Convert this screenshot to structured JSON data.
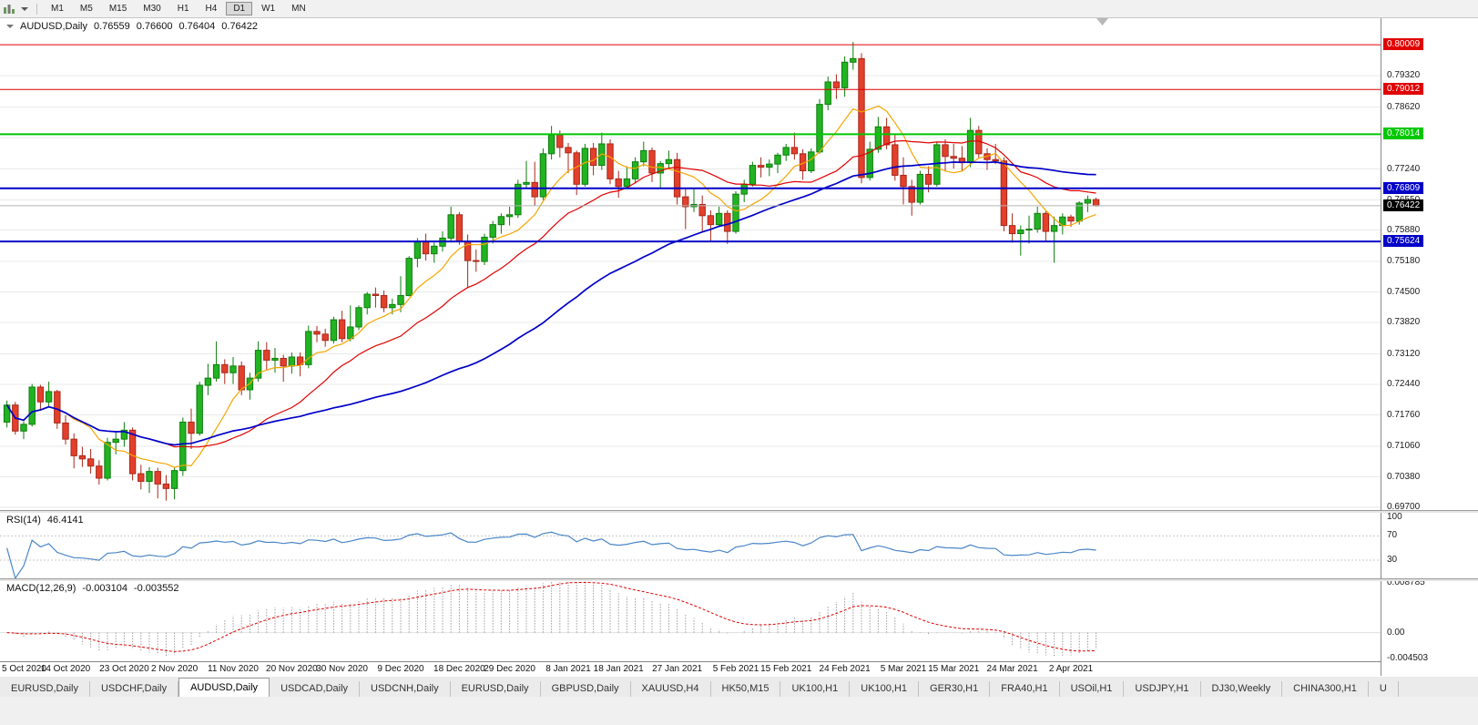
{
  "toolbar": {
    "timeframes": [
      {
        "label": "M1"
      },
      {
        "label": "M5"
      },
      {
        "label": "M15"
      },
      {
        "label": "M30"
      },
      {
        "label": "H1"
      },
      {
        "label": "H4"
      },
      {
        "label": "D1",
        "active": true
      },
      {
        "label": "W1"
      },
      {
        "label": "MN"
      }
    ]
  },
  "main_title": {
    "symbol": "AUDUSD,Daily",
    "open": "0.76559",
    "high": "0.76600",
    "low": "0.76404",
    "close": "0.76422"
  },
  "rsi_title": {
    "name": "RSI(14)",
    "value": "46.4141"
  },
  "macd_title": {
    "name": "MACD(12,26,9)",
    "main": "-0.003104",
    "signal": "-0.003552"
  },
  "tabs": {
    "items": [
      {
        "label": "EURUSD,Daily"
      },
      {
        "label": "USDCHF,Daily"
      },
      {
        "label": "AUDUSD,Daily",
        "active": true
      },
      {
        "label": "USDCAD,Daily"
      },
      {
        "label": "USDCNH,Daily"
      },
      {
        "label": "EURUSD,Daily"
      },
      {
        "label": "GBPUSD,Daily"
      },
      {
        "label": "XAUUSD,H4"
      },
      {
        "label": "HK50,M15"
      },
      {
        "label": "UK100,H1"
      },
      {
        "label": "UK100,H1"
      },
      {
        "label": "GER30,H1"
      },
      {
        "label": "FRA40,H1"
      },
      {
        "label": "USOil,H1"
      },
      {
        "label": "USDJPY,H1"
      },
      {
        "label": "DJ30,Weekly"
      },
      {
        "label": "CHINA300,H1"
      },
      {
        "label": "U"
      }
    ]
  },
  "chart_data": {
    "type": "candlestick",
    "symbol": "AUDUSD",
    "timeframe": "Daily",
    "price_range": {
      "min": 0.6964,
      "max": 0.806
    },
    "y_axis_labels": [
      "0.79320",
      "0.78620",
      "0.77940",
      "0.77240",
      "0.76550",
      "0.75880",
      "0.75180",
      "0.74500",
      "0.73820",
      "0.73120",
      "0.72440",
      "0.71760",
      "0.71060",
      "0.70380",
      "0.69700"
    ],
    "x_axis_labels": [
      {
        "i": 0,
        "label": "5 Oct 2020"
      },
      {
        "i": 7,
        "label": "14 Oct 2020"
      },
      {
        "i": 14,
        "label": "23 Oct 2020"
      },
      {
        "i": 20,
        "label": "2 Nov 2020"
      },
      {
        "i": 27,
        "label": "11 Nov 2020"
      },
      {
        "i": 34,
        "label": "20 Nov 2020"
      },
      {
        "i": 40,
        "label": "30 Nov 2020"
      },
      {
        "i": 47,
        "label": "9 Dec 2020"
      },
      {
        "i": 54,
        "label": "18 Dec 2020"
      },
      {
        "i": 60,
        "label": "29 Dec 2020"
      },
      {
        "i": 67,
        "label": "8 Jan 2021"
      },
      {
        "i": 73,
        "label": "18 Jan 2021"
      },
      {
        "i": 80,
        "label": "27 Jan 2021"
      },
      {
        "i": 87,
        "label": "5 Feb 2021"
      },
      {
        "i": 93,
        "label": "15 Feb 2021"
      },
      {
        "i": 100,
        "label": "24 Feb 2021"
      },
      {
        "i": 107,
        "label": "5 Mar 2021"
      },
      {
        "i": 113,
        "label": "15 Mar 2021"
      },
      {
        "i": 120,
        "label": "24 Mar 2021"
      },
      {
        "i": 127,
        "label": "2 Apr 2021"
      }
    ],
    "horizontal_lines": [
      {
        "price": 0.80009,
        "label": "0.80009",
        "color": "#e00000",
        "width": 1
      },
      {
        "price": 0.79012,
        "label": "0.79012",
        "color": "#e00000",
        "width": 1
      },
      {
        "price": 0.78014,
        "label": "0.78014",
        "color": "#00c800",
        "width": 2
      },
      {
        "price": 0.76809,
        "label": "0.76809",
        "color": "#0000c8",
        "width": 2
      },
      {
        "price": 0.75624,
        "label": "0.75624",
        "color": "#0000c8",
        "width": 2
      }
    ],
    "current_price": {
      "price": 0.76422,
      "label": "0.76422",
      "line_color": "#b4b4b4",
      "box_color": "#000000"
    },
    "colors": {
      "up": "#22b322",
      "up_border": "#0e7d0e",
      "down": "#e2402c",
      "down_border": "#a8281a",
      "grid": "#e9e9e9",
      "ma_fast": "#f5a500",
      "ma_mid": "#e00000",
      "ma_slow": "#0000c8",
      "rsi": "#4a86c8",
      "rsi_level": "#c8c8c8",
      "macd_hist": "#9a9a9a",
      "macd_signal": "#e00000",
      "shift_marker": "#b8b8b8"
    },
    "moving_averages": [
      {
        "period": 8,
        "color_key": "ma_fast",
        "width": 1.2
      },
      {
        "period": 20,
        "color_key": "ma_mid",
        "width": 1.2
      },
      {
        "period": 50,
        "color_key": "ma_slow",
        "width": 1.7
      }
    ],
    "rsi": {
      "period": 14,
      "levels": [
        70,
        30
      ],
      "scale_labels": [
        "100",
        "70",
        "30"
      ],
      "scale_max": 108
    },
    "macd": {
      "fast": 12,
      "slow": 26,
      "signal": 9,
      "range": {
        "min": -0.00505,
        "max": 0.00911
      },
      "axis_labels": [
        "0.008785",
        "0.00",
        "-0.004503"
      ]
    },
    "candles": [
      [
        0.716,
        0.7208,
        0.7148,
        0.7198
      ],
      [
        0.7198,
        0.7205,
        0.7132,
        0.714
      ],
      [
        0.714,
        0.7162,
        0.7122,
        0.7155
      ],
      [
        0.7155,
        0.7245,
        0.715,
        0.7238
      ],
      [
        0.7238,
        0.7243,
        0.7185,
        0.7205
      ],
      [
        0.7205,
        0.725,
        0.7195,
        0.7228
      ],
      [
        0.7228,
        0.7232,
        0.7145,
        0.7158
      ],
      [
        0.7158,
        0.7175,
        0.711,
        0.7122
      ],
      [
        0.7122,
        0.7135,
        0.7057,
        0.7085
      ],
      [
        0.7085,
        0.7105,
        0.706,
        0.7078
      ],
      [
        0.7078,
        0.71,
        0.7045,
        0.7062
      ],
      [
        0.7062,
        0.7075,
        0.7021,
        0.7035
      ],
      [
        0.7035,
        0.7125,
        0.703,
        0.7115
      ],
      [
        0.7115,
        0.714,
        0.7088,
        0.7122
      ],
      [
        0.7122,
        0.716,
        0.7105,
        0.7142
      ],
      [
        0.7142,
        0.7148,
        0.703,
        0.7045
      ],
      [
        0.7045,
        0.7065,
        0.701,
        0.7028
      ],
      [
        0.7028,
        0.706,
        0.7002,
        0.705
      ],
      [
        0.705,
        0.7058,
        0.699,
        0.7022
      ],
      [
        0.7022,
        0.7042,
        0.6985,
        0.7012
      ],
      [
        0.7012,
        0.706,
        0.6988,
        0.7052
      ],
      [
        0.7052,
        0.717,
        0.704,
        0.716
      ],
      [
        0.716,
        0.719,
        0.71,
        0.7135
      ],
      [
        0.7135,
        0.725,
        0.713,
        0.7242
      ],
      [
        0.7242,
        0.729,
        0.722,
        0.7258
      ],
      [
        0.7258,
        0.734,
        0.725,
        0.7288
      ],
      [
        0.7288,
        0.73,
        0.7245,
        0.727
      ],
      [
        0.727,
        0.7305,
        0.7245,
        0.7285
      ],
      [
        0.7285,
        0.7295,
        0.722,
        0.7232
      ],
      [
        0.7232,
        0.727,
        0.721,
        0.7258
      ],
      [
        0.7258,
        0.734,
        0.725,
        0.732
      ],
      [
        0.732,
        0.7338,
        0.7275,
        0.7298
      ],
      [
        0.7298,
        0.7325,
        0.727,
        0.7302
      ],
      [
        0.7302,
        0.731,
        0.725,
        0.7285
      ],
      [
        0.7285,
        0.7315,
        0.7268,
        0.7305
      ],
      [
        0.7305,
        0.7315,
        0.7262,
        0.7288
      ],
      [
        0.7288,
        0.7375,
        0.728,
        0.7362
      ],
      [
        0.7362,
        0.7374,
        0.7338,
        0.7356
      ],
      [
        0.7356,
        0.7368,
        0.7328,
        0.7342
      ],
      [
        0.7342,
        0.7395,
        0.7335,
        0.7388
      ],
      [
        0.7388,
        0.7408,
        0.7338,
        0.7346
      ],
      [
        0.7346,
        0.742,
        0.734,
        0.7372
      ],
      [
        0.7372,
        0.742,
        0.7365,
        0.7415
      ],
      [
        0.7415,
        0.745,
        0.74,
        0.7445
      ],
      [
        0.7445,
        0.746,
        0.7415,
        0.7442
      ],
      [
        0.7442,
        0.7453,
        0.7405,
        0.7415
      ],
      [
        0.7415,
        0.7435,
        0.74,
        0.7422
      ],
      [
        0.7422,
        0.7485,
        0.7405,
        0.7442
      ],
      [
        0.7442,
        0.753,
        0.744,
        0.7525
      ],
      [
        0.7525,
        0.757,
        0.7505,
        0.7562
      ],
      [
        0.7562,
        0.758,
        0.752,
        0.7535
      ],
      [
        0.7535,
        0.756,
        0.7515,
        0.7552
      ],
      [
        0.7552,
        0.7585,
        0.754,
        0.757
      ],
      [
        0.757,
        0.764,
        0.756,
        0.7622
      ],
      [
        0.7622,
        0.7628,
        0.7555,
        0.7562
      ],
      [
        0.7562,
        0.7578,
        0.746,
        0.752
      ],
      [
        0.752,
        0.7545,
        0.7495,
        0.7518
      ],
      [
        0.7518,
        0.758,
        0.751,
        0.7572
      ],
      [
        0.7572,
        0.7608,
        0.7558,
        0.76
      ],
      [
        0.76,
        0.7625,
        0.758,
        0.7618
      ],
      [
        0.7618,
        0.764,
        0.7598,
        0.7622
      ],
      [
        0.7622,
        0.77,
        0.7615,
        0.769
      ],
      [
        0.769,
        0.7742,
        0.768,
        0.7694
      ],
      [
        0.7694,
        0.774,
        0.7642,
        0.7662
      ],
      [
        0.7662,
        0.777,
        0.7655,
        0.7758
      ],
      [
        0.7758,
        0.782,
        0.7745,
        0.78
      ],
      [
        0.78,
        0.781,
        0.775,
        0.7772
      ],
      [
        0.7772,
        0.7782,
        0.7715,
        0.776
      ],
      [
        0.776,
        0.7765,
        0.7666,
        0.769
      ],
      [
        0.769,
        0.778,
        0.7685,
        0.777
      ],
      [
        0.777,
        0.7782,
        0.771,
        0.7732
      ],
      [
        0.7732,
        0.7805,
        0.7722,
        0.778
      ],
      [
        0.778,
        0.779,
        0.769,
        0.7702
      ],
      [
        0.7702,
        0.772,
        0.766,
        0.7685
      ],
      [
        0.7685,
        0.773,
        0.768,
        0.7702
      ],
      [
        0.7702,
        0.775,
        0.7692,
        0.774
      ],
      [
        0.774,
        0.7785,
        0.773,
        0.7765
      ],
      [
        0.7765,
        0.7772,
        0.7695,
        0.7715
      ],
      [
        0.7715,
        0.7742,
        0.768,
        0.7736
      ],
      [
        0.7736,
        0.7765,
        0.7725,
        0.7745
      ],
      [
        0.7745,
        0.776,
        0.7645,
        0.7662
      ],
      [
        0.7662,
        0.768,
        0.759,
        0.764
      ],
      [
        0.764,
        0.768,
        0.7628,
        0.7645
      ],
      [
        0.7645,
        0.7665,
        0.7585,
        0.762
      ],
      [
        0.762,
        0.7632,
        0.7562,
        0.76
      ],
      [
        0.76,
        0.764,
        0.7595,
        0.7625
      ],
      [
        0.7625,
        0.7632,
        0.7557,
        0.7585
      ],
      [
        0.7585,
        0.7675,
        0.758,
        0.7668
      ],
      [
        0.7668,
        0.77,
        0.765,
        0.769
      ],
      [
        0.769,
        0.774,
        0.7685,
        0.7732
      ],
      [
        0.7732,
        0.775,
        0.7705,
        0.7728
      ],
      [
        0.7728,
        0.7745,
        0.7708,
        0.7735
      ],
      [
        0.7735,
        0.776,
        0.7715,
        0.7755
      ],
      [
        0.7755,
        0.778,
        0.7742,
        0.7772
      ],
      [
        0.7772,
        0.7805,
        0.7745,
        0.7758
      ],
      [
        0.7758,
        0.7768,
        0.77,
        0.772
      ],
      [
        0.772,
        0.777,
        0.7715,
        0.7762
      ],
      [
        0.7762,
        0.788,
        0.7758,
        0.7868
      ],
      [
        0.7868,
        0.793,
        0.7855,
        0.7918
      ],
      [
        0.7918,
        0.7935,
        0.788,
        0.7905
      ],
      [
        0.7905,
        0.7975,
        0.7885,
        0.7962
      ],
      [
        0.7962,
        0.8007,
        0.7945,
        0.797
      ],
      [
        0.797,
        0.7982,
        0.7692,
        0.7705
      ],
      [
        0.7705,
        0.7785,
        0.7698,
        0.7768
      ],
      [
        0.7768,
        0.784,
        0.776,
        0.7818
      ],
      [
        0.7818,
        0.7838,
        0.7768,
        0.7778
      ],
      [
        0.7778,
        0.78,
        0.7698,
        0.771
      ],
      [
        0.771,
        0.775,
        0.7645,
        0.7685
      ],
      [
        0.7685,
        0.77,
        0.762,
        0.765
      ],
      [
        0.765,
        0.772,
        0.7645,
        0.7712
      ],
      [
        0.7712,
        0.773,
        0.7672,
        0.769
      ],
      [
        0.769,
        0.7785,
        0.7685,
        0.7778
      ],
      [
        0.7778,
        0.779,
        0.772,
        0.7752
      ],
      [
        0.7752,
        0.778,
        0.7725,
        0.7748
      ],
      [
        0.7748,
        0.7775,
        0.7718,
        0.7738
      ],
      [
        0.7738,
        0.7838,
        0.7728,
        0.781
      ],
      [
        0.781,
        0.782,
        0.7748,
        0.7758
      ],
      [
        0.7758,
        0.777,
        0.7722,
        0.7745
      ],
      [
        0.7745,
        0.778,
        0.7735,
        0.7742
      ],
      [
        0.7742,
        0.775,
        0.7585,
        0.7598
      ],
      [
        0.7598,
        0.7625,
        0.756,
        0.758
      ],
      [
        0.758,
        0.7598,
        0.7531,
        0.7588
      ],
      [
        0.7588,
        0.762,
        0.7558,
        0.759
      ],
      [
        0.759,
        0.764,
        0.7582,
        0.7625
      ],
      [
        0.7625,
        0.763,
        0.7563,
        0.7585
      ],
      [
        0.7585,
        0.7618,
        0.7515,
        0.7598
      ],
      [
        0.7598,
        0.7625,
        0.7578,
        0.7617
      ],
      [
        0.7617,
        0.7622,
        0.7595,
        0.7608
      ],
      [
        0.7608,
        0.7652,
        0.76,
        0.7648
      ],
      [
        0.7648,
        0.7665,
        0.7628,
        0.7656
      ],
      [
        0.76559,
        0.766,
        0.76404,
        0.76422
      ]
    ]
  }
}
